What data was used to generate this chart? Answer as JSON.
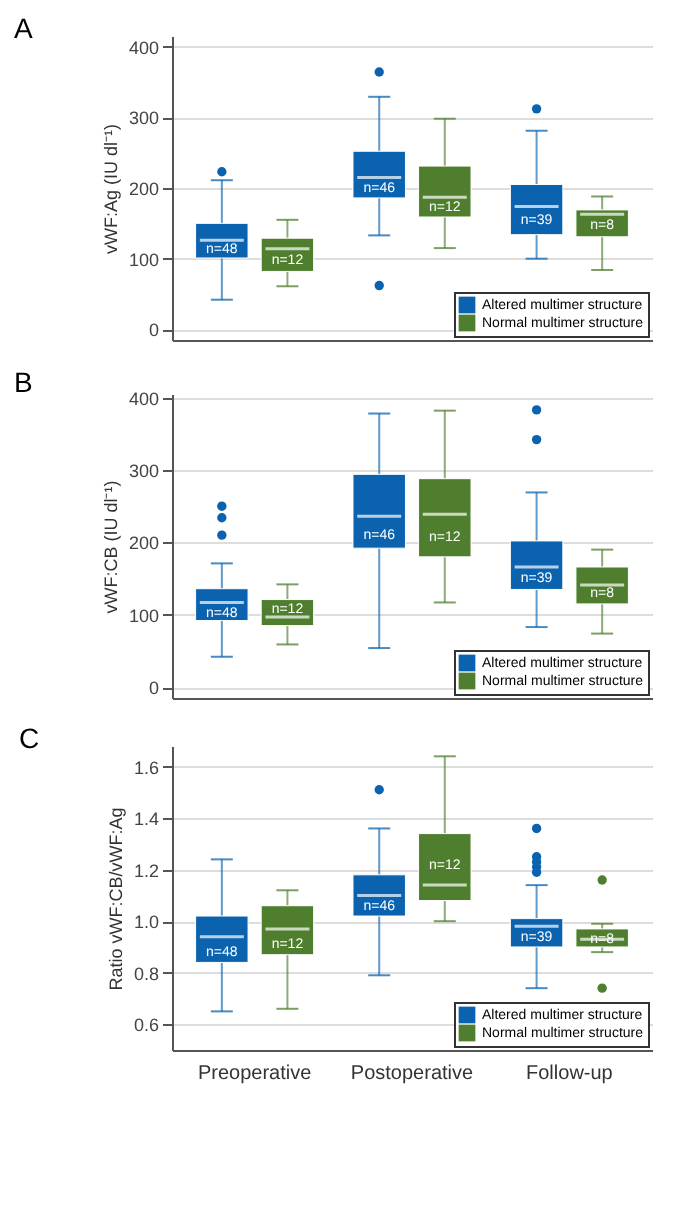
{
  "chart_data": [
    {
      "type": "box",
      "title": "A",
      "ylabel": "vWF:Ag (IU dl⁻¹)",
      "categories": [
        "Preoperative",
        "Postoperative",
        "Follow-up"
      ],
      "ylim": [
        -15,
        415
      ],
      "yticks": [
        0,
        100,
        200,
        300,
        400
      ],
      "grid": "y",
      "legend": "bottom right",
      "tick_labels": "y",
      "series": [
        {
          "name": "Altered multimer structure",
          "color": "#0b63b0",
          "boxes": [
            {
              "low": 42,
              "q1": 101,
              "median": 126,
              "q3": 150,
              "high": 211,
              "outliers": [
                223
              ]
            },
            {
              "low": 133,
              "q1": 186,
              "median": 215,
              "q3": 252,
              "high": 329,
              "outliers": [
                364,
                62
              ]
            },
            {
              "low": 100,
              "q1": 134,
              "median": 174,
              "q3": 205,
              "high": 281,
              "outliers": [
                312
              ]
            }
          ]
        },
        {
          "name": "Normal multimer structure",
          "color": "#4f7f2e",
          "boxes": [
            {
              "low": 61,
              "q1": 82,
              "median": 114,
              "q3": 129,
              "high": 155
            },
            {
              "low": 115,
              "q1": 159,
              "median": 187,
              "q3": 231,
              "high": 298
            },
            {
              "low": 84,
              "q1": 131,
              "median": 163,
              "q3": 169,
              "high": 188
            }
          ]
        }
      ],
      "annotations": [
        {
          "text": "n=48",
          "x": "Preoperative",
          "y": 114
        },
        {
          "text": "n=12",
          "x": "Preoperative",
          "y": 98
        },
        {
          "text": "n=46",
          "x": "Postoperative",
          "y": 200
        },
        {
          "text": "n=12",
          "x": "Postoperative",
          "y": 173
        },
        {
          "text": "n=39",
          "x": "Follow-up",
          "y": 155
        },
        {
          "text": "n=8",
          "x": "Follow-up",
          "y": 147
        }
      ]
    },
    {
      "type": "box",
      "title": "B",
      "ylabel": "vWF:CB (IU dl⁻¹)",
      "categories": [
        "Preoperative",
        "Postoperative",
        "Follow-up"
      ],
      "ylim": [
        -15,
        405
      ],
      "yticks": [
        0,
        100,
        200,
        300,
        400
      ],
      "grid": "y",
      "legend": "bottom right",
      "tick_labels": "y",
      "series": [
        {
          "name": "Altered multimer structure",
          "color": "#0b63b0",
          "boxes": [
            {
              "low": 42,
              "q1": 92,
              "median": 117,
              "q3": 136,
              "high": 171,
              "outliers": [
                250,
                234,
                210
              ]
            },
            {
              "low": 54,
              "q1": 192,
              "median": 236,
              "q3": 294,
              "high": 378
            },
            {
              "low": 83,
              "q1": 135,
              "median": 166,
              "q3": 202,
              "high": 269,
              "outliers": [
                383,
                342
              ]
            }
          ]
        },
        {
          "name": "Normal multimer structure",
          "color": "#4f7f2e",
          "boxes": [
            {
              "low": 59,
              "q1": 85,
              "median": 97,
              "q3": 121,
              "high": 142
            },
            {
              "low": 117,
              "q1": 180,
              "median": 239,
              "q3": 288,
              "high": 382
            },
            {
              "low": 74,
              "q1": 115,
              "median": 141,
              "q3": 166,
              "high": 190
            }
          ]
        }
      ],
      "annotations": [
        {
          "text": "n=48",
          "x": "Preoperative",
          "y": 102
        },
        {
          "text": "n=12",
          "x": "Preoperative",
          "y": 108
        },
        {
          "text": "n=46",
          "x": "Postoperative",
          "y": 210
        },
        {
          "text": "n=12",
          "x": "Postoperative",
          "y": 207
        },
        {
          "text": "n=39",
          "x": "Follow-up",
          "y": 151
        },
        {
          "text": "n=8",
          "x": "Follow-up",
          "y": 130
        }
      ]
    },
    {
      "type": "box",
      "title": "C",
      "ylabel": "Ratio vWF:CB/vWF:Ag",
      "categories": [
        "Preoperative",
        "Postoperative",
        "Follow-up"
      ],
      "ylim": [
        0.5,
        1.68
      ],
      "yticks": [
        {
          "value": 0.6,
          "label": "0.6"
        },
        {
          "value": 0.8,
          "label": "0.8"
        },
        {
          "value": 1,
          "label": "1.0"
        },
        {
          "value": 1.2,
          "label": "1.2"
        },
        {
          "value": 1.4,
          "label": "1.4"
        },
        {
          "value": 1.6,
          "label": "1.6"
        }
      ],
      "grid": "y",
      "legend": "bottom right",
      "series": [
        {
          "name": "Altered multimer structure",
          "color": "#0b63b0",
          "boxes": [
            {
              "low": 0.65,
              "q1": 0.84,
              "median": 0.94,
              "q3": 1.02,
              "high": 1.24
            },
            {
              "low": 0.79,
              "q1": 1.02,
              "median": 1.1,
              "q3": 1.18,
              "high": 1.36,
              "outliers": [
                1.51
              ]
            },
            {
              "low": 0.74,
              "q1": 0.9,
              "median": 0.98,
              "q3": 1.01,
              "high": 1.14,
              "outliers": [
                1.36,
                1.25,
                1.23,
                1.21,
                1.19
              ]
            }
          ]
        },
        {
          "name": "Normal multimer structure",
          "color": "#4f7f2e",
          "boxes": [
            {
              "low": 0.66,
              "q1": 0.87,
              "median": 0.97,
              "q3": 1.06,
              "high": 1.12
            },
            {
              "low": 1,
              "q1": 1.08,
              "median": 1.14,
              "q3": 1.34,
              "high": 1.64
            },
            {
              "low": 0.88,
              "q1": 0.9,
              "median": 0.93,
              "q3": 0.97,
              "high": 0.99,
              "outliers": [
                1.16,
                0.74
              ]
            }
          ]
        }
      ],
      "annotations": [
        {
          "text": "n=48",
          "x": "Preoperative",
          "y": 0.88
        },
        {
          "text": "n=12",
          "x": "Preoperative",
          "y": 0.91
        },
        {
          "text": "n=46",
          "x": "Postoperative",
          "y": 1.06
        },
        {
          "text": "n=12",
          "x": "Postoperative",
          "y": 1.22
        },
        {
          "text": "n=39",
          "x": "Follow-up",
          "y": 0.94
        },
        {
          "text": "n=8",
          "x": "Follow-up",
          "y": 0.93
        }
      ]
    }
  ]
}
